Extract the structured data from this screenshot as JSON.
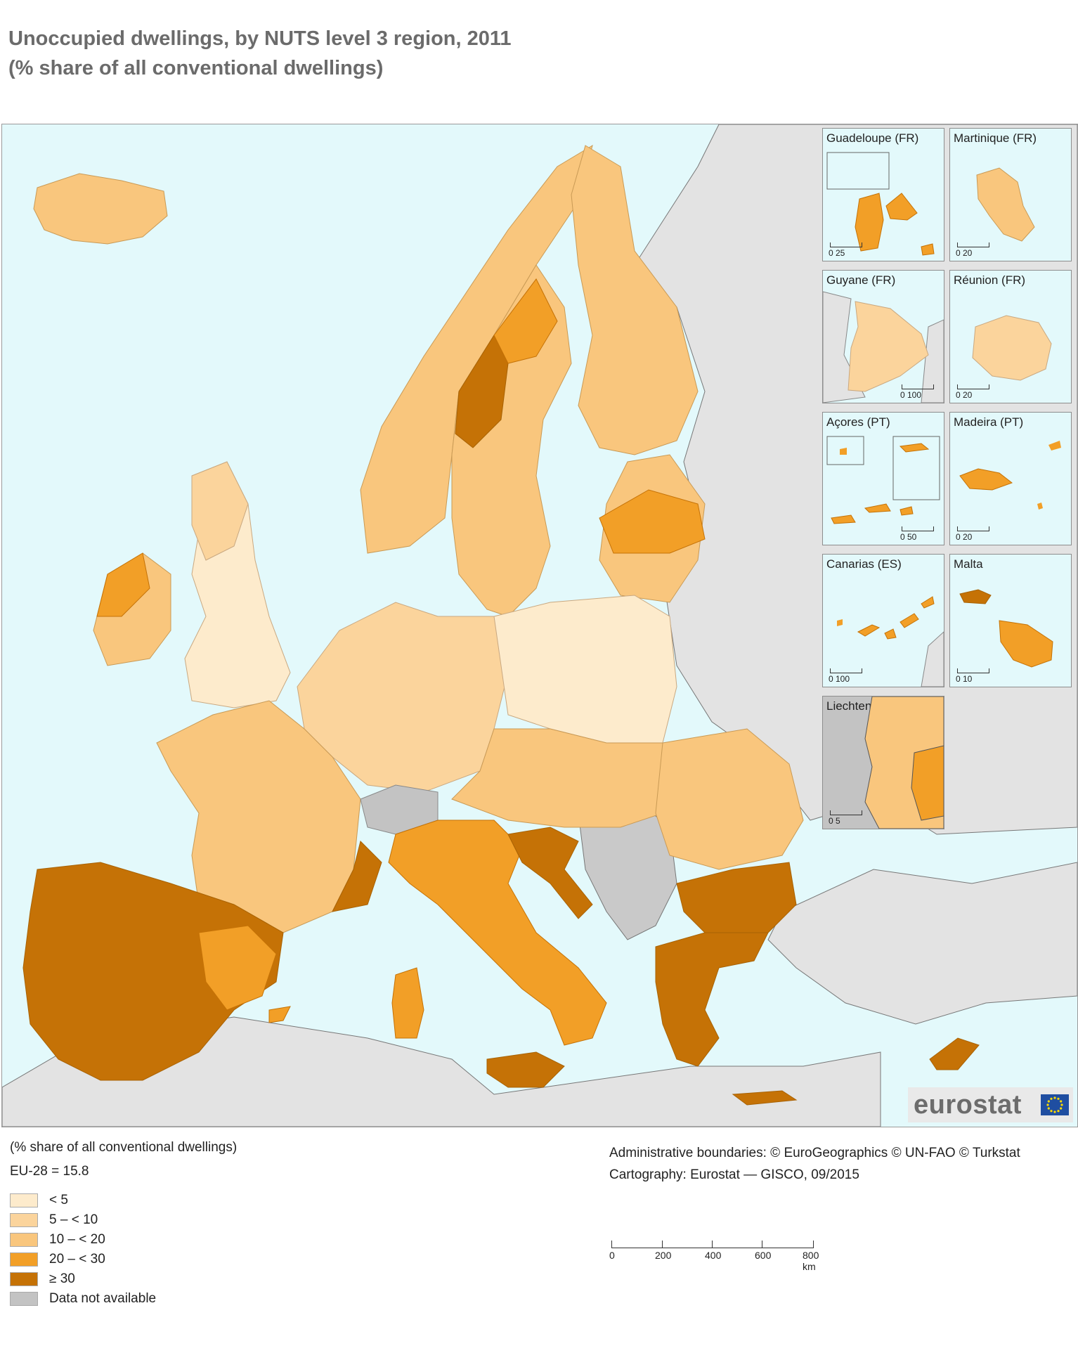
{
  "title": {
    "line1": "Unoccupied dwellings, by NUTS level 3 region, 2011",
    "line2": "(% share of all conventional dwellings)"
  },
  "colors": {
    "sea": "#e3f9fb",
    "non_eu_land": "#e3e3e3",
    "class_lt5": "#fdebcc",
    "class_5_10": "#fbd49c",
    "class_10_20": "#f9c67d",
    "class_20_30": "#f29f27",
    "class_ge30": "#c57206",
    "not_available": "#c3c3c3"
  },
  "insets": [
    {
      "label": "Guadeloupe (FR)",
      "scale": "0    25"
    },
    {
      "label": "Martinique (FR)",
      "scale": "0    20"
    },
    {
      "label": "Guyane (FR)",
      "scale": "0   100"
    },
    {
      "label": "Réunion (FR)",
      "scale": "0    20"
    },
    {
      "label": "Açores (PT)",
      "scale": "0    50"
    },
    {
      "label": "Madeira (PT)",
      "scale": "0    20"
    },
    {
      "label": "Canarias (ES)",
      "scale": "0   100"
    },
    {
      "label": "Malta",
      "scale": "0    10"
    },
    {
      "label": "Liechtenstein",
      "scale": "0    5"
    }
  ],
  "logo": {
    "text": "eurostat"
  },
  "legend": {
    "unit": "(% share of all conventional dwellings)",
    "average": "EU-28 = 15.8",
    "items": [
      {
        "label": "< 5",
        "color": "#fdebcc"
      },
      {
        "label": "5 – < 10",
        "color": "#fbd49c"
      },
      {
        "label": "10 – < 20",
        "color": "#f9c67d"
      },
      {
        "label": "20 – < 30",
        "color": "#f29f27"
      },
      {
        "label": "≥ 30",
        "color": "#c57206"
      },
      {
        "label": "Data not available",
        "color": "#c3c3c3"
      }
    ]
  },
  "credits": {
    "line1": "Administrative boundaries: © EuroGeographics © UN-FAO © Turkstat",
    "line2": "Cartography: Eurostat — GISCO, 09/2015"
  },
  "scalebar": {
    "ticks": [
      "0",
      "200",
      "400",
      "600",
      "800 km"
    ]
  }
}
